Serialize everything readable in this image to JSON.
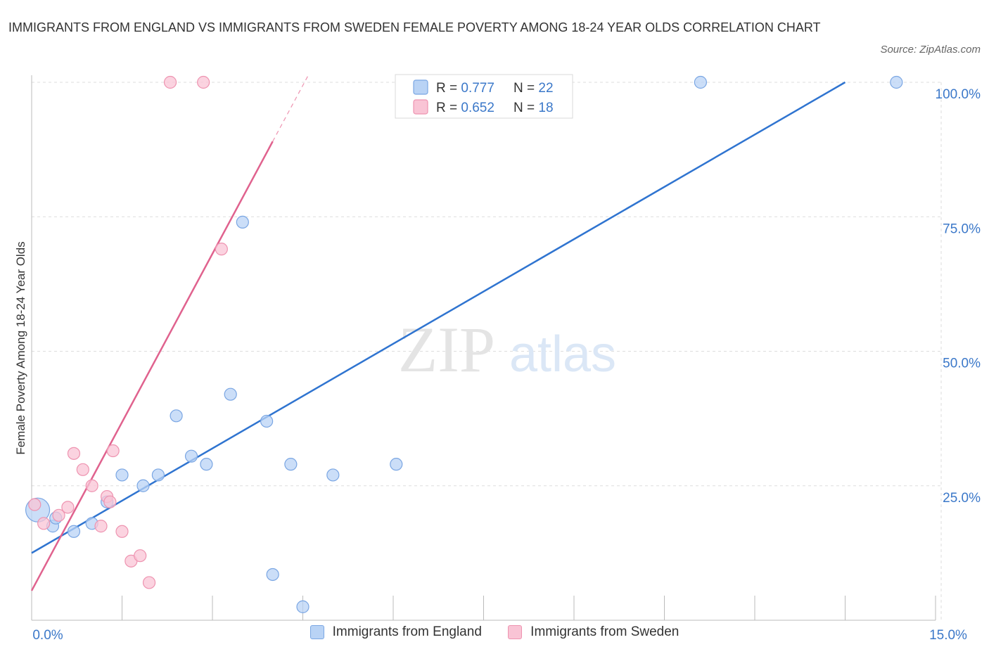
{
  "header": {
    "title": "IMMIGRANTS FROM ENGLAND VS IMMIGRANTS FROM SWEDEN FEMALE POVERTY AMONG 18-24 YEAR OLDS CORRELATION CHART",
    "source": "Source: ZipAtlas.com"
  },
  "watermark": {
    "zip": "ZIP",
    "atlas": "atlas"
  },
  "colors": {
    "england_fill": "#b9d3f5",
    "england_stroke": "#7aa6e3",
    "england_line": "#2f74d0",
    "sweden_fill": "#f9c4d5",
    "sweden_stroke": "#ee93b0",
    "sweden_line": "#e0628e",
    "value_text": "#3b78c9",
    "grid": "#dddddd"
  },
  "stats_legend": {
    "r_label": "R = ",
    "n_label": "N = ",
    "rows": [
      {
        "r": "0.777",
        "n": "22"
      },
      {
        "r": "0.652",
        "n": "18"
      }
    ]
  },
  "chart_data": {
    "type": "scatter",
    "title": "IMMIGRANTS FROM ENGLAND VS IMMIGRANTS FROM SWEDEN FEMALE POVERTY AMONG 18-24 YEAR OLDS CORRELATION CHART",
    "xlabel": "",
    "ylabel": "Female Poverty Among 18-24 Year Olds",
    "xlim": [
      0,
      15
    ],
    "ylim": [
      0,
      100
    ],
    "x_tick_labels": [
      {
        "value": 0,
        "label": "0.0%"
      },
      {
        "value": 15,
        "label": "15.0%"
      }
    ],
    "y_tick_labels": [
      {
        "value": 25,
        "label": "25.0%"
      },
      {
        "value": 50,
        "label": "50.0%"
      },
      {
        "value": 75,
        "label": "75.0%"
      },
      {
        "value": 100,
        "label": "100.0%"
      }
    ],
    "legend_position": "bottom",
    "grid": true,
    "series": [
      {
        "name": "Immigrants from England",
        "r": 0.777,
        "n": 22,
        "trend": {
          "x": [
            0,
            13.5
          ],
          "y": [
            12.5,
            100
          ]
        },
        "points": [
          {
            "x": 0.1,
            "y": 20.5,
            "big": true
          },
          {
            "x": 0.35,
            "y": 17.5
          },
          {
            "x": 0.4,
            "y": 19
          },
          {
            "x": 0.7,
            "y": 16.5
          },
          {
            "x": 1.0,
            "y": 18
          },
          {
            "x": 1.25,
            "y": 22
          },
          {
            "x": 1.5,
            "y": 27
          },
          {
            "x": 1.85,
            "y": 25
          },
          {
            "x": 2.1,
            "y": 27
          },
          {
            "x": 2.4,
            "y": 38
          },
          {
            "x": 2.65,
            "y": 30.5
          },
          {
            "x": 2.9,
            "y": 29
          },
          {
            "x": 3.3,
            "y": 42
          },
          {
            "x": 3.5,
            "y": 74
          },
          {
            "x": 3.9,
            "y": 37
          },
          {
            "x": 4.0,
            "y": 8.5
          },
          {
            "x": 4.3,
            "y": 29
          },
          {
            "x": 4.5,
            "y": 2.5
          },
          {
            "x": 5.0,
            "y": 27
          },
          {
            "x": 6.05,
            "y": 29
          },
          {
            "x": 11.1,
            "y": 100
          },
          {
            "x": 14.35,
            "y": 100
          }
        ]
      },
      {
        "name": "Immigrants from Sweden",
        "r": 0.652,
        "n": 18,
        "trend": {
          "x": [
            0,
            4.0
          ],
          "y": [
            5.5,
            89
          ]
        },
        "trend_dashed": {
          "x": [
            4.0,
            4.6
          ],
          "y": [
            89,
            101.5
          ]
        },
        "points": [
          {
            "x": 0.05,
            "y": 21.5
          },
          {
            "x": 0.2,
            "y": 18
          },
          {
            "x": 0.45,
            "y": 19.5
          },
          {
            "x": 0.6,
            "y": 21
          },
          {
            "x": 0.7,
            "y": 31
          },
          {
            "x": 0.85,
            "y": 28
          },
          {
            "x": 1.0,
            "y": 25
          },
          {
            "x": 1.15,
            "y": 17.5
          },
          {
            "x": 1.25,
            "y": 23
          },
          {
            "x": 1.35,
            "y": 31.5
          },
          {
            "x": 1.5,
            "y": 16.5
          },
          {
            "x": 1.65,
            "y": 11
          },
          {
            "x": 1.8,
            "y": 12
          },
          {
            "x": 1.95,
            "y": 7
          },
          {
            "x": 2.3,
            "y": 100
          },
          {
            "x": 2.85,
            "y": 100
          },
          {
            "x": 3.15,
            "y": 69
          },
          {
            "x": 1.3,
            "y": 22
          }
        ]
      }
    ]
  }
}
